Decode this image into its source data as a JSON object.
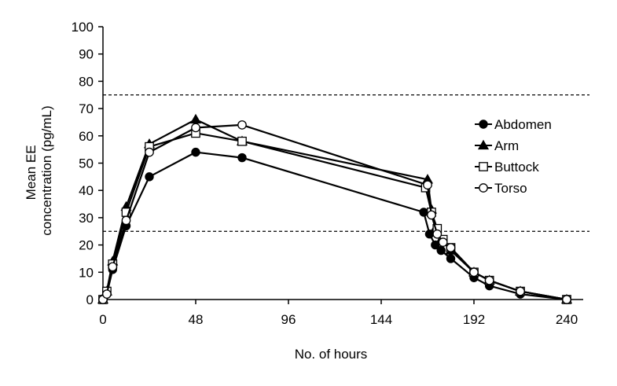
{
  "chart_data": {
    "type": "line",
    "title": "",
    "xlabel": "No. of hours",
    "ylabel_lines": [
      "Mean EE",
      "concentration (pg/mL)"
    ],
    "xlim": [
      0,
      240
    ],
    "ylim": [
      0,
      100
    ],
    "xticks": [
      0,
      48,
      96,
      144,
      192,
      240
    ],
    "yticks": [
      0,
      10,
      20,
      30,
      40,
      50,
      60,
      70,
      80,
      90,
      100
    ],
    "grid": false,
    "legend_position": "right",
    "reference_lines": [
      75,
      25
    ],
    "series": [
      {
        "name": "Abdomen",
        "marker": "filled-circle",
        "x": [
          0,
          2,
          5,
          12,
          24,
          48,
          72,
          166,
          169,
          172,
          175,
          180,
          192,
          200,
          216,
          240
        ],
        "y": [
          0,
          2,
          11,
          27,
          45,
          54,
          52,
          32,
          24,
          20,
          18,
          15,
          8,
          5,
          2,
          0
        ]
      },
      {
        "name": "Arm",
        "marker": "filled-triangle",
        "x": [
          0,
          2,
          5,
          12,
          24,
          48,
          72,
          168,
          170,
          172,
          175,
          180,
          192,
          200,
          216,
          240
        ],
        "y": [
          0,
          3,
          14,
          34,
          57,
          66,
          58,
          44,
          33,
          26,
          22,
          18,
          10,
          7,
          3,
          0
        ]
      },
      {
        "name": "Buttock",
        "marker": "open-square",
        "x": [
          0,
          2,
          5,
          12,
          24,
          48,
          72,
          167,
          170,
          173,
          176,
          180,
          192,
          200,
          216,
          240
        ],
        "y": [
          0,
          3,
          13,
          32,
          56,
          61,
          58,
          41,
          32,
          26,
          22,
          19,
          10,
          7,
          3,
          0
        ]
      },
      {
        "name": "Torso",
        "marker": "open-circle",
        "x": [
          0,
          2,
          5,
          12,
          24,
          48,
          72,
          168,
          170,
          173,
          176,
          180,
          192,
          200,
          216,
          240
        ],
        "y": [
          0,
          2,
          12,
          29,
          54,
          63,
          64,
          42,
          31,
          24,
          21,
          19,
          10,
          7,
          3,
          0
        ]
      }
    ]
  }
}
